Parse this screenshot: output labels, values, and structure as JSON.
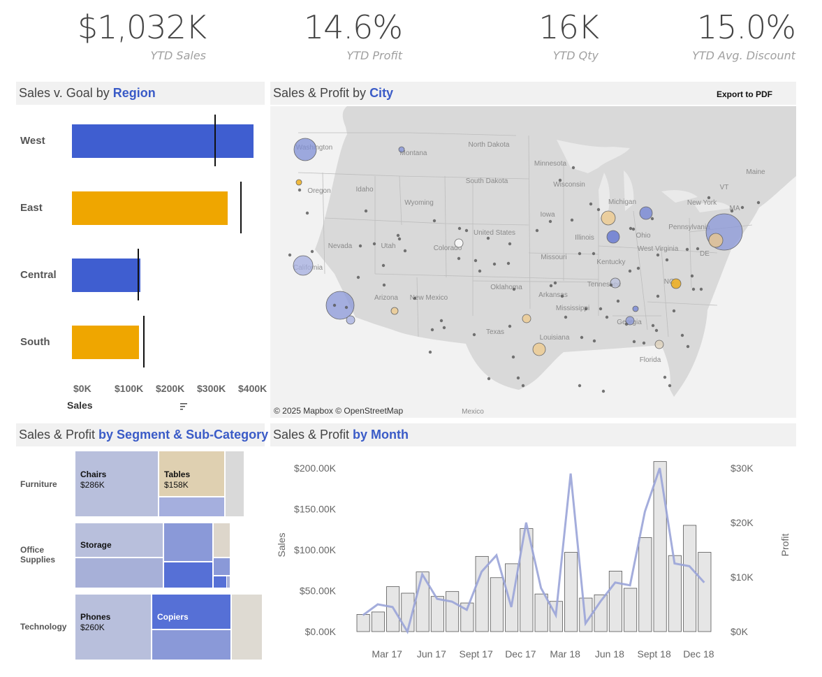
{
  "kpis": [
    {
      "value": "$1,032K",
      "label": "YTD Sales"
    },
    {
      "value": "14.6%",
      "label": "YTD Profit"
    },
    {
      "value": "16K",
      "label": "YTD Qty"
    },
    {
      "value": "15.0%",
      "label": "YTD Avg. Discount"
    }
  ],
  "region_panel": {
    "title_prefix": "Sales v. Goal by ",
    "title_highlight": "Region",
    "axis_title": "Sales",
    "sort_icon": "sort-descending-icon"
  },
  "city_panel": {
    "title_prefix": "Sales & Profit by ",
    "title_highlight": "City",
    "export_label": "Export to PDF",
    "attribution": "© 2025 Mapbox © OpenStreetMap",
    "place_labels": [
      "Washington",
      "Montana",
      "North Dakota",
      "Minnesota",
      "Oregon",
      "Idaho",
      "South Dakota",
      "Wisconsin",
      "Michigan",
      "Wyoming",
      "Iowa",
      "New York",
      "Pennsylvania",
      "Nevada",
      "Utah",
      "Colorado",
      "United States",
      "Illinois",
      "Ohio",
      "California",
      "Missouri",
      "Kentucky",
      "West Virginia",
      "Arizona",
      "New Mexico",
      "Oklahoma",
      "Tennessee",
      "Arkansas",
      "Mississippi",
      "Texas",
      "Louisiana",
      "Georgia",
      "Florida",
      "Mexico",
      "Maine",
      "VT",
      "MA",
      "DE",
      "NC"
    ]
  },
  "segment_panel": {
    "title_prefix": "Sales & Profit ",
    "title_highlight": "by Segment & Sub-Category",
    "segments": [
      "Furniture",
      "Office\nSupplies",
      "Technology"
    ],
    "tiles": {
      "chairs_label": "Chairs",
      "chairs_value": "$286K",
      "tables_label": "Tables",
      "tables_value": "$158K",
      "storage_label": "Storage",
      "phones_label": "Phones",
      "phones_value": "$260K",
      "copiers_label": "Copiers"
    }
  },
  "month_panel": {
    "title_prefix": "Sales & Profit ",
    "title_highlight": "by Month",
    "y_left_title": "Sales",
    "y_right_title": "Profit"
  },
  "colors": {
    "blue": "#3f5ed0",
    "orange": "#efa600",
    "accent": "#3a5bc7",
    "bar_fill": "#e6e6e6",
    "profit_line": "#9aa4d8"
  },
  "chart_data": [
    {
      "type": "bar",
      "categories": [
        "West",
        "East",
        "Central",
        "South"
      ],
      "series": [
        {
          "name": "Sales",
          "values": [
            395000,
            339000,
            149000,
            146000
          ]
        },
        {
          "name": "Goal",
          "values": [
            310000,
            366000,
            143000,
            155000
          ]
        }
      ],
      "bar_colors": [
        "#3f5ed0",
        "#efa600",
        "#3f5ed0",
        "#efa600"
      ],
      "xlabel": "Sales",
      "xticks": [
        "$0K",
        "$100K",
        "$200K",
        "$300K",
        "$400K"
      ],
      "xlim": [
        0,
        400000
      ]
    },
    {
      "type": "bar",
      "categories": [
        "Jan 17",
        "Feb 17",
        "Mar 17",
        "Apr 17",
        "May 17",
        "Jun 17",
        "Jul 17",
        "Aug 17",
        "Sep 17",
        "Oct 17",
        "Nov 17",
        "Dec 17",
        "Jan 18",
        "Feb 18",
        "Mar 18",
        "Apr 18",
        "May 18",
        "Jun 18",
        "Jul 18",
        "Aug 18",
        "Sep 18",
        "Oct 18",
        "Nov 18",
        "Dec 18"
      ],
      "xticks": [
        "Mar 17",
        "Jun 17",
        "Sept 17",
        "Dec 17",
        "Mar 18",
        "Jun 18",
        "Sept 18",
        "Dec 18"
      ],
      "series": [
        {
          "name": "Sales",
          "values": [
            21000,
            24000,
            55000,
            47000,
            73000,
            43000,
            49000,
            35000,
            92000,
            66000,
            83000,
            126000,
            46000,
            37000,
            97000,
            41000,
            45000,
            74000,
            53000,
            115000,
            208000,
            93000,
            130000,
            97000
          ]
        },
        {
          "name": "Profit",
          "values": [
            3000,
            5000,
            4500,
            0,
            10500,
            6000,
            5500,
            4000,
            11000,
            14000,
            4500,
            20000,
            8000,
            3000,
            29000,
            1500,
            5500,
            9000,
            8500,
            22000,
            30000,
            12500,
            12000,
            9000
          ]
        }
      ],
      "ylabel": "Sales",
      "ylabel_right": "Profit",
      "ylim": [
        0,
        200000
      ],
      "ylim_right": [
        0,
        30000
      ],
      "yticks": [
        "$0.00K",
        "$50.00K",
        "$100.00K",
        "$150.00K",
        "$200.00K"
      ],
      "yticks_right": [
        "$0K",
        "$10K",
        "$20K",
        "$30K"
      ]
    }
  ]
}
